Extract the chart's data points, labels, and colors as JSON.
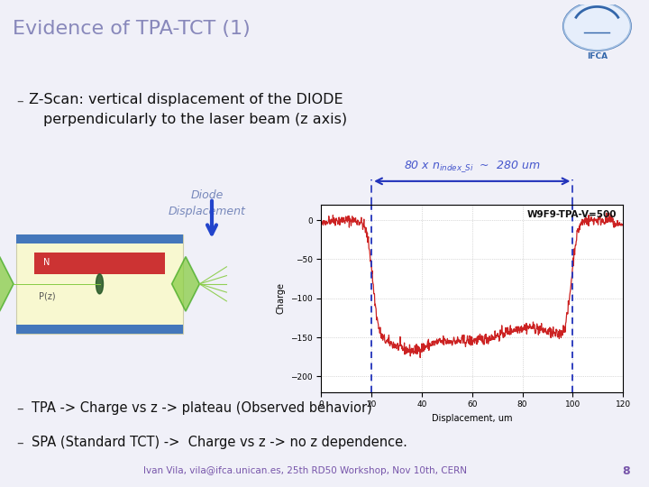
{
  "title": "Evidence of TPA-TCT (1)",
  "title_color": "#8888bb",
  "title_fontsize": 16,
  "bg_color": "#f0f0f8",
  "footer_bg": "#c8cce0",
  "footer_text": "Ivan Vila, vila@ifca.unican.es, 25th RD50 Workshop, Nov 10th, CERN",
  "footer_page": "8",
  "footer_color": "#7755aa",
  "bullet_color": "#111111",
  "bullet_fontsize": 12,
  "diode_label_color": "#7788bb",
  "annotation_color": "#4455cc",
  "plot_label": "W9F9-TPA-V=500",
  "dashed_line_color": "#2233bb",
  "plot_line_color": "#cc2222",
  "xlabel": "Displacement, um",
  "ylabel": "Charge",
  "xlim": [
    0,
    120
  ],
  "ylim": [
    -220,
    20
  ],
  "xticks": [
    0,
    20,
    40,
    60,
    80,
    100,
    120
  ],
  "yticks": [
    0,
    -50,
    -100,
    -150,
    -200
  ],
  "vline1": 20,
  "vline2": 100,
  "plot_bg": "#ffffff",
  "arrow_color": "#2244cc",
  "lens_color": "#88cc44",
  "lens_edge": "#44aa22",
  "yellow_bg": "#f8f8d0",
  "blue_strip": "#4477bb",
  "red_strip": "#cc3333"
}
